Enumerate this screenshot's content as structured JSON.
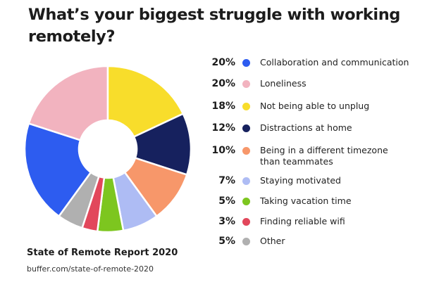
{
  "title": "What’s your biggest struggle with working remotely?",
  "source": {
    "title": "State of Remote Report 2020",
    "url": "buffer.com/state-of-remote-2020"
  },
  "chart_data": {
    "type": "pie",
    "title": "What’s your biggest struggle with working remotely?",
    "donut": true,
    "legend_position": "right",
    "slices": [
      {
        "label": "Collaboration and communication",
        "pct_label": "20%",
        "value": 20,
        "color": "#2d5cf0"
      },
      {
        "label": "Loneliness",
        "pct_label": "20%",
        "value": 20,
        "color": "#f2b3bf"
      },
      {
        "label": "Not being able to unplug",
        "pct_label": "18%",
        "value": 18,
        "color": "#f8dd2b"
      },
      {
        "label": "Distractions at home",
        "pct_label": "12%",
        "value": 12,
        "color": "#16215e"
      },
      {
        "label": "Being in a different timezone than teammates",
        "pct_label": "10%",
        "value": 10,
        "color": "#f7976a"
      },
      {
        "label": "Staying motivated",
        "pct_label": "7%",
        "value": 7,
        "color": "#aebcf4"
      },
      {
        "label": "Taking vacation time",
        "pct_label": "5%",
        "value": 5,
        "color": "#7dc61f"
      },
      {
        "label": "Finding reliable wifi",
        "pct_label": "3%",
        "value": 3,
        "color": "#e2475b"
      },
      {
        "label": "Other",
        "pct_label": "5%",
        "value": 5,
        "color": "#b0b0b0"
      }
    ]
  }
}
